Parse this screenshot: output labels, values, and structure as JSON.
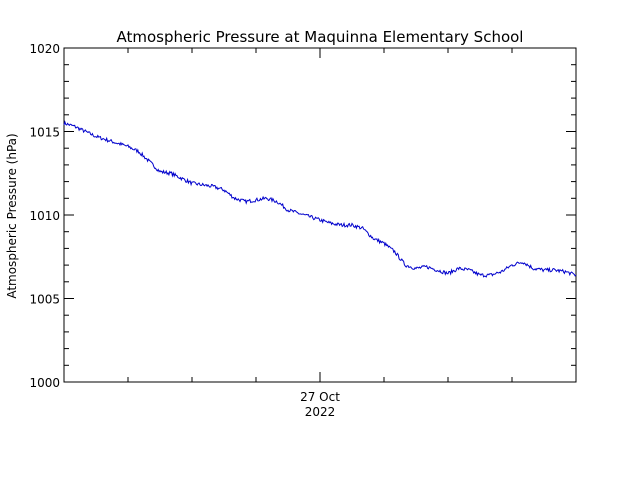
{
  "chart_data": {
    "type": "line",
    "title": "Atmospheric Pressure at Maquinna Elementary School",
    "ylabel": "Atmospheric Pressure (hPa)",
    "xlabel": "",
    "ylim": [
      1000,
      1020
    ],
    "y_ticks": [
      "1000",
      "1005",
      "1010",
      "1015",
      "1020"
    ],
    "x_range": [
      "2022-10-26T00:00",
      "2022-10-28T00:00"
    ],
    "x_tick_labels": [
      {
        "x": "2022-10-27T00:00",
        "line1": "27 Oct",
        "line2": "2022"
      }
    ],
    "grid": false,
    "legend": "none",
    "colors": {
      "line": "#0000cc",
      "axes": "#000000"
    },
    "series": [
      {
        "x": [
          "2022-10-26T00:00",
          "2022-10-26T01:00",
          "2022-10-26T02:00",
          "2022-10-26T03:00",
          "2022-10-26T04:00",
          "2022-10-26T05:00",
          "2022-10-26T06:00",
          "2022-10-26T07:00",
          "2022-10-26T08:00",
          "2022-10-26T09:00",
          "2022-10-26T10:00",
          "2022-10-26T11:00",
          "2022-10-26T12:00",
          "2022-10-26T13:00",
          "2022-10-26T14:00",
          "2022-10-26T15:00",
          "2022-10-26T16:00",
          "2022-10-26T17:00",
          "2022-10-26T18:00",
          "2022-10-26T19:00",
          "2022-10-26T20:00",
          "2022-10-26T21:00",
          "2022-10-26T22:00",
          "2022-10-26T23:00",
          "2022-10-27T00:00",
          "2022-10-27T01:00",
          "2022-10-27T02:00",
          "2022-10-27T03:00",
          "2022-10-27T04:00",
          "2022-10-27T05:00",
          "2022-10-27T06:00",
          "2022-10-27T07:00",
          "2022-10-27T08:00",
          "2022-10-27T09:00",
          "2022-10-27T10:00",
          "2022-10-27T11:00",
          "2022-10-27T12:00",
          "2022-10-27T13:00",
          "2022-10-27T14:00",
          "2022-10-27T15:00",
          "2022-10-27T16:00",
          "2022-10-27T17:00",
          "2022-10-27T18:00",
          "2022-10-27T19:00",
          "2022-10-27T20:00",
          "2022-10-27T21:00",
          "2022-10-27T22:00",
          "2022-10-27T23:00",
          "2022-10-28T00:00"
        ],
        "values": [
          1015.5,
          1015.3,
          1015.0,
          1014.7,
          1014.5,
          1014.3,
          1014.1,
          1013.8,
          1013.2,
          1012.6,
          1012.5,
          1012.2,
          1011.9,
          1011.8,
          1011.7,
          1011.5,
          1011.0,
          1010.8,
          1010.9,
          1011.0,
          1010.8,
          1010.3,
          1010.1,
          1009.9,
          1009.7,
          1009.5,
          1009.4,
          1009.4,
          1009.2,
          1008.6,
          1008.3,
          1007.8,
          1007.0,
          1006.8,
          1006.9,
          1006.7,
          1006.5,
          1006.8,
          1006.7,
          1006.4,
          1006.4,
          1006.6,
          1007.0,
          1007.2,
          1006.8,
          1006.7,
          1006.7,
          1006.6,
          1006.4
        ]
      }
    ]
  }
}
